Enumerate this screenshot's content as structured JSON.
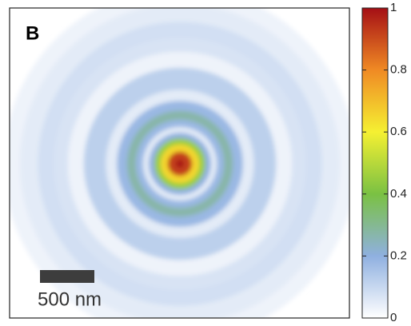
{
  "chart_data": {
    "type": "radial-heatmap",
    "panel_label": "B",
    "scale_bar": {
      "value": 500,
      "label": "500 nm"
    },
    "x": [
      0,
      74,
      147,
      206,
      257,
      309,
      368,
      441,
      529,
      625,
      735,
      809,
      956,
      1103,
      1213,
      1397,
      1544
    ],
    "values": [
      1,
      0.92,
      0.65,
      0.45,
      0.2,
      0.05,
      0.18,
      0.27,
      0.18,
      0.05,
      0.12,
      0.12,
      0.03,
      0.07,
      0.08,
      0.05,
      0.03
    ],
    "colorbar": {
      "lim": [
        0,
        1
      ],
      "ticks": [
        0,
        0.2,
        0.4,
        0.6,
        0.8,
        1
      ]
    }
  }
}
